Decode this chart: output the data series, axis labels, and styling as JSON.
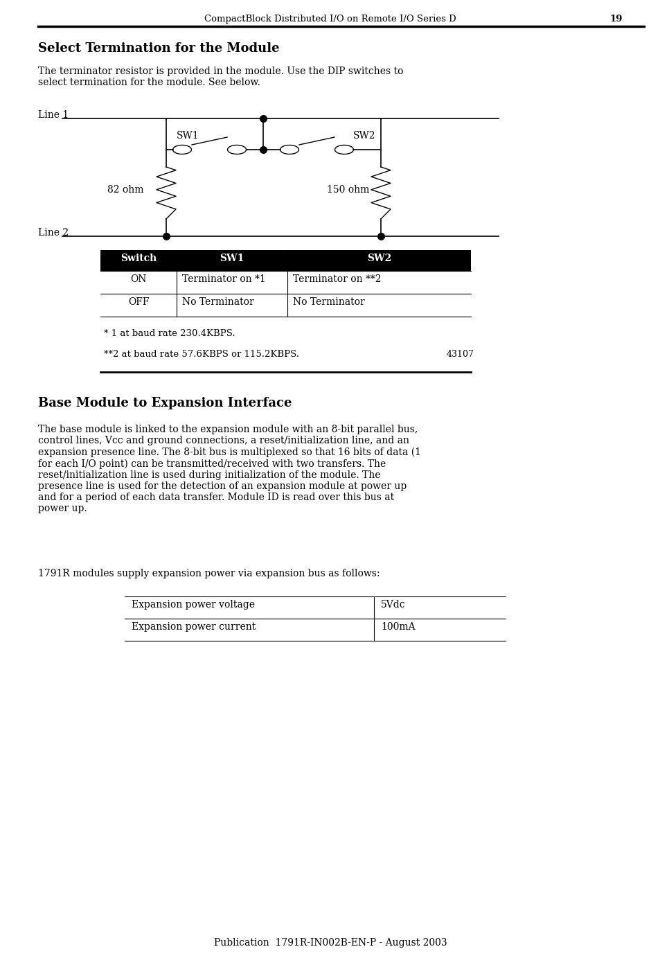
{
  "page_header": "CompactBlock Distributed I/O on Remote I/O Series D",
  "page_number": "19",
  "section1_title": "Select Termination for the Module",
  "section1_intro": "The terminator resistor is provided in the module. Use the DIP switches to\nselect termination for the module. See below.",
  "line1_label": "Line 1",
  "line2_label": "Line 2",
  "sw1_label": "SW1",
  "sw2_label": "SW2",
  "r1_label": "82 ohm",
  "r2_label": "150 ohm",
  "table_headers": [
    "Switch",
    "SW1",
    "SW2"
  ],
  "table_row1": [
    "ON",
    "Terminator on *1",
    "Terminator on **2"
  ],
  "table_row2": [
    "OFF",
    "No Terminator",
    "No Terminator"
  ],
  "footnote1": "* 1 at baud rate 230.4KBPS.",
  "footnote2": "**2 at baud rate 57.6KBPS or 115.2KBPS.",
  "fig_number": "43107",
  "section2_title": "Base Module to Expansion Interface",
  "section2_body": "The base module is linked to the expansion module with an 8-bit parallel bus,\ncontrol lines, Vcc and ground connections, a reset/initialization line, and an\nexpansion presence line. The 8-bit bus is multiplexed so that 16 bits of data (1\nfor each I/O point) can be transmitted/received with two transfers. The\nreset/initialization line is used during initialization of the module. The\npresence line is used for the detection of an expansion module at power up\nand for a period of each data transfer. Module ID is read over this bus at\npower up.",
  "section2_para2": "1791R modules supply expansion power via expansion bus as follows:",
  "table2_row0": [
    "Expansion power voltage",
    "5Vdc"
  ],
  "table2_row1": [
    "Expansion power current",
    "100mA"
  ],
  "footer": "Publication  1791R-IN002B-EN-P - August 2003",
  "bg_color": "#ffffff",
  "text_color": "#000000"
}
